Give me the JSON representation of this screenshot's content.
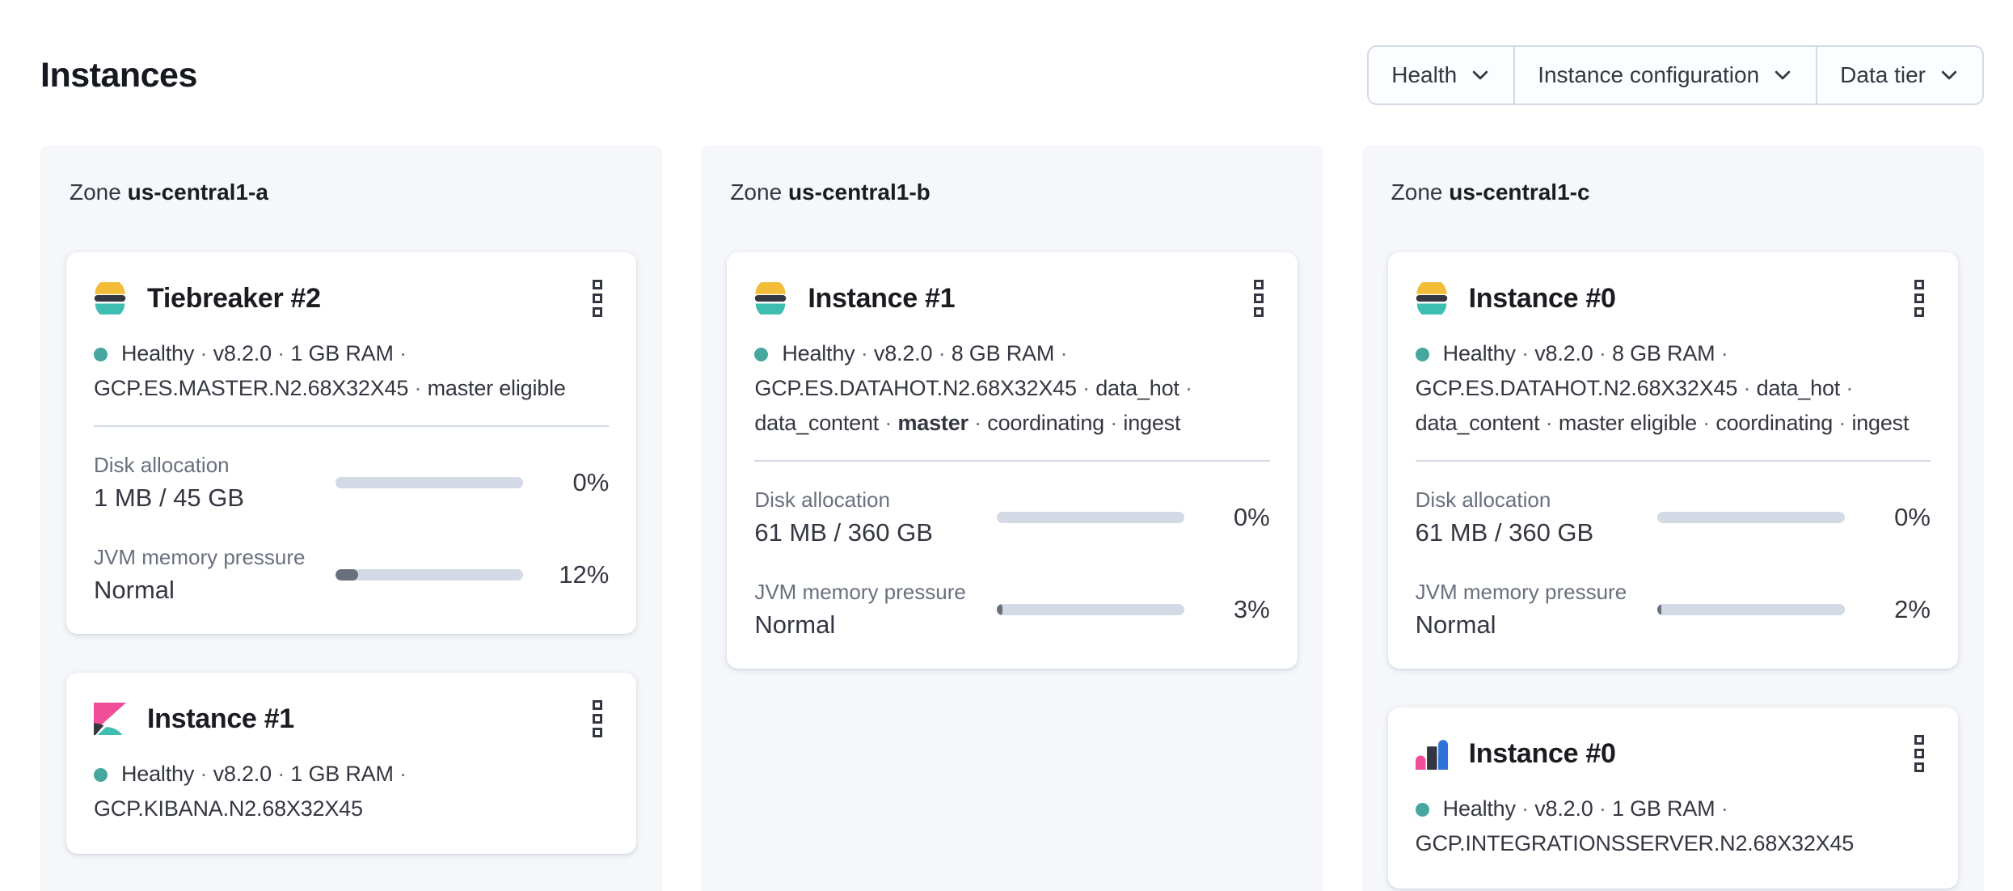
{
  "separator": "·",
  "page": {
    "title": "Instances"
  },
  "filters": [
    {
      "label": "Health"
    },
    {
      "label": "Instance configuration"
    },
    {
      "label": "Data tier"
    }
  ],
  "colors": {
    "health_dot": "#45a79e",
    "bar_track": "#d3dae6",
    "bar_fill": "#69707d",
    "panel_bg": "#f5f7fa",
    "elastic_yellow": "#f4bd38",
    "elastic_teal": "#3ebeb0",
    "elastic_pink": "#f04e98",
    "elastic_dark": "#343741",
    "elastic_blue": "#2f72d8"
  },
  "zones": [
    {
      "label": "Zone",
      "name": "us-central1-a",
      "cards": [
        {
          "logo": "elasticsearch-logo",
          "title": "Tiebreaker #2",
          "meta": [
            {
              "text": "Healthy"
            },
            {
              "text": "v8.2.0"
            },
            {
              "text": "1 GB RAM"
            },
            {
              "text": "GCP.ES.MASTER.N2.68X32X45"
            },
            {
              "text": "master eligible"
            }
          ],
          "disk": {
            "label": "Disk allocation",
            "value": "1 MB / 45 GB",
            "percent": "0%",
            "percent_value": 0
          },
          "jvm": {
            "label": "JVM memory pressure",
            "value": "Normal",
            "percent": "12%",
            "percent_value": 12
          }
        },
        {
          "logo": "kibana-logo",
          "title": "Instance #1",
          "meta": [
            {
              "text": "Healthy"
            },
            {
              "text": "v8.2.0"
            },
            {
              "text": "1 GB RAM"
            },
            {
              "text": "GCP.KIBANA.N2.68X32X45"
            }
          ]
        }
      ]
    },
    {
      "label": "Zone",
      "name": "us-central1-b",
      "cards": [
        {
          "logo": "elasticsearch-logo",
          "title": "Instance #1",
          "meta": [
            {
              "text": "Healthy"
            },
            {
              "text": "v8.2.0"
            },
            {
              "text": "8 GB RAM"
            },
            {
              "text": "GCP.ES.DATAHOT.N2.68X32X45"
            },
            {
              "text": "data_hot"
            },
            {
              "text": "data_content"
            },
            {
              "text": "master",
              "bold": true
            },
            {
              "text": "coordinating"
            },
            {
              "text": "ingest"
            }
          ],
          "disk": {
            "label": "Disk allocation",
            "value": "61 MB / 360 GB",
            "percent": "0%",
            "percent_value": 0
          },
          "jvm": {
            "label": "JVM memory pressure",
            "value": "Normal",
            "percent": "3%",
            "percent_value": 3
          }
        }
      ]
    },
    {
      "label": "Zone",
      "name": "us-central1-c",
      "cards": [
        {
          "logo": "elasticsearch-logo",
          "title": "Instance #0",
          "meta": [
            {
              "text": "Healthy"
            },
            {
              "text": "v8.2.0"
            },
            {
              "text": "8 GB RAM"
            },
            {
              "text": "GCP.ES.DATAHOT.N2.68X32X45"
            },
            {
              "text": "data_hot"
            },
            {
              "text": "data_content"
            },
            {
              "text": "master eligible"
            },
            {
              "text": "coordinating"
            },
            {
              "text": "ingest"
            }
          ],
          "disk": {
            "label": "Disk allocation",
            "value": "61 MB / 360 GB",
            "percent": "0%",
            "percent_value": 0
          },
          "jvm": {
            "label": "JVM memory pressure",
            "value": "Normal",
            "percent": "2%",
            "percent_value": 2
          }
        },
        {
          "logo": "integrations-server-logo",
          "title": "Instance #0",
          "meta": [
            {
              "text": "Healthy"
            },
            {
              "text": "v8.2.0"
            },
            {
              "text": "1 GB RAM"
            },
            {
              "text": "GCP.INTEGRATIONSSERVER.N2.68X32X45"
            }
          ]
        }
      ]
    }
  ]
}
